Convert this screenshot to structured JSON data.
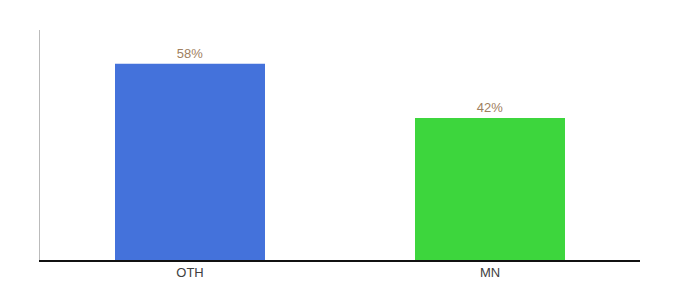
{
  "chart_data": {
    "type": "bar",
    "categories": [
      "OTH",
      "MN"
    ],
    "values": [
      58,
      42
    ],
    "value_labels": [
      "58%",
      "42%"
    ],
    "colors": [
      "#4472db",
      "#3dd63d"
    ],
    "ylim": [
      0,
      68
    ],
    "data_labels": true,
    "tick_labels": "x",
    "grid": false
  }
}
